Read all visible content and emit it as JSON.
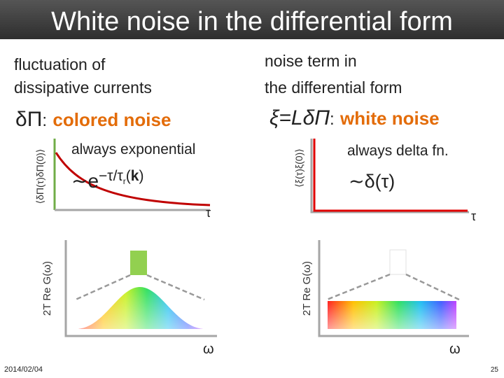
{
  "header": {
    "title": "White noise in the differential form"
  },
  "left": {
    "heading": [
      "fluctuation of",
      "dissipative currents"
    ],
    "subheading": {
      "symbol": "δΠ",
      "separator": ":",
      "label": "colored noise"
    },
    "correlator_ylabel": "⟨δΠ(τ)δΠ(0)⟩",
    "caption": "always exponential",
    "formula": {
      "base": "∼e",
      "exponent": "−τ/τ",
      "subscript": "r",
      "open": "(",
      "argument": "k",
      "close": ")"
    },
    "correlator_xlabel": "τ",
    "spectrum_ylabel": "2T Re G(ω)",
    "spectrum_xlabel": "ω"
  },
  "right": {
    "heading": [
      "noise term in",
      "the differential form"
    ],
    "subheading": {
      "symbol": "ξ=LδΠ",
      "separator": ":",
      "label": "white noise"
    },
    "correlator_ylabel": "⟨ξ(τ)ξ(0)⟩",
    "caption": "always delta fn.",
    "formula": "∼δ(τ)",
    "correlator_xlabel": "τ",
    "spectrum_ylabel": "2T Re G(ω)",
    "spectrum_xlabel": "ω"
  },
  "footer": {
    "date": "2014/02/04",
    "page": "25"
  }
}
